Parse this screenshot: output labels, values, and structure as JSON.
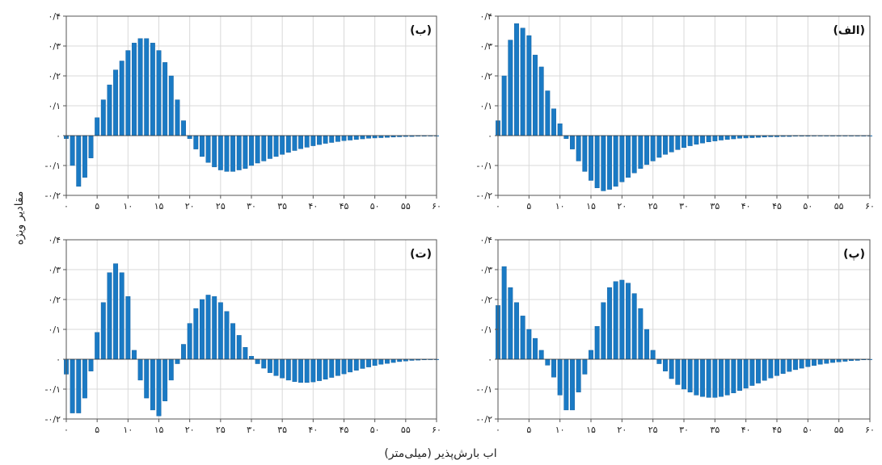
{
  "figure": {
    "xlabel": "اب بارش‌پذیر (میلی‌متر)",
    "ylabel": "مقادیر ویژه"
  },
  "colors": {
    "bar": "#1a7ac4",
    "bar_edge": "#0d5a99",
    "grid": "#d9d9d9",
    "axis": "#555555"
  },
  "chart_data": [
    {
      "type": "bar",
      "panel_label": "(الف)",
      "x": [
        0,
        1,
        2,
        3,
        4,
        5,
        6,
        7,
        8,
        9,
        10,
        11,
        12,
        13,
        14,
        15,
        16,
        17,
        18,
        19,
        20,
        21,
        22,
        23,
        24,
        25,
        26,
        27,
        28,
        29,
        30,
        31,
        32,
        33,
        34,
        35,
        36,
        37,
        38,
        39,
        40,
        41,
        42,
        43,
        44,
        45,
        46,
        47,
        48,
        49,
        50,
        51,
        52,
        53,
        54,
        55,
        56,
        57,
        58,
        59,
        60
      ],
      "values": [
        0.05,
        0.2,
        0.32,
        0.375,
        0.36,
        0.335,
        0.27,
        0.23,
        0.15,
        0.09,
        0.04,
        -0.01,
        -0.045,
        -0.085,
        -0.12,
        -0.15,
        -0.175,
        -0.185,
        -0.18,
        -0.17,
        -0.155,
        -0.14,
        -0.125,
        -0.11,
        -0.097,
        -0.085,
        -0.073,
        -0.063,
        -0.055,
        -0.047,
        -0.04,
        -0.034,
        -0.029,
        -0.025,
        -0.021,
        -0.018,
        -0.015,
        -0.013,
        -0.011,
        -0.009,
        -0.008,
        -0.007,
        -0.006,
        -0.005,
        -0.004,
        -0.004,
        -0.003,
        -0.003,
        -0.002,
        -0.002,
        -0.002,
        -0.001,
        -0.001,
        -0.001,
        -0.001,
        -0.001,
        -0.001,
        -0.001,
        -0.001,
        0,
        0
      ],
      "ylim": [
        -0.2,
        0.4
      ],
      "yticks": [
        -0.2,
        -0.1,
        0,
        0.1,
        0.2,
        0.3,
        0.4
      ],
      "ytick_labels": [
        "-۰/۲",
        "-۰/۱",
        "۰",
        "۰/۱",
        "۰/۲",
        "۰/۳",
        "۰/۴"
      ],
      "xticks": [
        0,
        5,
        10,
        15,
        20,
        25,
        30,
        35,
        40,
        45,
        50,
        55,
        60
      ],
      "xtick_labels": [
        "۰",
        "۵",
        "۱۰",
        "۱۵",
        "۲۰",
        "۲۵",
        "۳۰",
        "۳۵",
        "۴۰",
        "۴۵",
        "۵۰",
        "۵۵",
        "۶۰"
      ],
      "grid": true
    },
    {
      "type": "bar",
      "panel_label": "(ب)",
      "x": [
        0,
        1,
        2,
        3,
        4,
        5,
        6,
        7,
        8,
        9,
        10,
        11,
        12,
        13,
        14,
        15,
        16,
        17,
        18,
        19,
        20,
        21,
        22,
        23,
        24,
        25,
        26,
        27,
        28,
        29,
        30,
        31,
        32,
        33,
        34,
        35,
        36,
        37,
        38,
        39,
        40,
        41,
        42,
        43,
        44,
        45,
        46,
        47,
        48,
        49,
        50,
        51,
        52,
        53,
        54,
        55,
        56,
        57,
        58,
        59,
        60
      ],
      "values": [
        -0.01,
        -0.1,
        -0.17,
        -0.14,
        -0.075,
        0.06,
        0.12,
        0.17,
        0.22,
        0.25,
        0.285,
        0.31,
        0.325,
        0.325,
        0.31,
        0.285,
        0.245,
        0.2,
        0.12,
        0.05,
        -0.01,
        -0.045,
        -0.07,
        -0.09,
        -0.105,
        -0.115,
        -0.12,
        -0.12,
        -0.115,
        -0.11,
        -0.1,
        -0.092,
        -0.085,
        -0.077,
        -0.07,
        -0.063,
        -0.056,
        -0.05,
        -0.044,
        -0.039,
        -0.034,
        -0.03,
        -0.026,
        -0.023,
        -0.02,
        -0.017,
        -0.015,
        -0.013,
        -0.011,
        -0.009,
        -0.008,
        -0.007,
        -0.006,
        -0.005,
        -0.004,
        -0.003,
        -0.003,
        -0.002,
        -0.002,
        -0.001,
        0
      ],
      "ylim": [
        -0.2,
        0.4
      ],
      "yticks": [
        -0.2,
        -0.1,
        0,
        0.1,
        0.2,
        0.3,
        0.4
      ],
      "ytick_labels": [
        "-۰/۲",
        "-۰/۱",
        "۰",
        "۰/۱",
        "۰/۲",
        "۰/۳",
        "۰/۴"
      ],
      "xticks": [
        0,
        5,
        10,
        15,
        20,
        25,
        30,
        35,
        40,
        45,
        50,
        55,
        60
      ],
      "xtick_labels": [
        "۰",
        "۵",
        "۱۰",
        "۱۵",
        "۲۰",
        "۲۵",
        "۳۰",
        "۳۵",
        "۴۰",
        "۴۵",
        "۵۰",
        "۵۵",
        "۶۰"
      ],
      "grid": true
    },
    {
      "type": "bar",
      "panel_label": "(پ)",
      "x": [
        0,
        1,
        2,
        3,
        4,
        5,
        6,
        7,
        8,
        9,
        10,
        11,
        12,
        13,
        14,
        15,
        16,
        17,
        18,
        19,
        20,
        21,
        22,
        23,
        24,
        25,
        26,
        27,
        28,
        29,
        30,
        31,
        32,
        33,
        34,
        35,
        36,
        37,
        38,
        39,
        40,
        41,
        42,
        43,
        44,
        45,
        46,
        47,
        48,
        49,
        50,
        51,
        52,
        53,
        54,
        55,
        56,
        57,
        58,
        59,
        60
      ],
      "values": [
        0.18,
        0.31,
        0.24,
        0.19,
        0.145,
        0.1,
        0.07,
        0.03,
        -0.02,
        -0.06,
        -0.12,
        -0.17,
        -0.17,
        -0.11,
        -0.05,
        0.03,
        0.11,
        0.19,
        0.24,
        0.26,
        0.265,
        0.255,
        0.22,
        0.17,
        0.1,
        0.03,
        -0.015,
        -0.04,
        -0.065,
        -0.085,
        -0.1,
        -0.11,
        -0.12,
        -0.125,
        -0.128,
        -0.128,
        -0.125,
        -0.12,
        -0.113,
        -0.105,
        -0.097,
        -0.088,
        -0.08,
        -0.071,
        -0.063,
        -0.055,
        -0.048,
        -0.041,
        -0.035,
        -0.03,
        -0.025,
        -0.021,
        -0.017,
        -0.014,
        -0.011,
        -0.009,
        -0.007,
        -0.005,
        -0.004,
        -0.002,
        0
      ],
      "ylim": [
        -0.2,
        0.4
      ],
      "yticks": [
        -0.2,
        -0.1,
        0,
        0.1,
        0.2,
        0.3,
        0.4
      ],
      "ytick_labels": [
        "-۰/۲",
        "-۰/۱",
        "۰",
        "۰/۱",
        "۰/۲",
        "۰/۳",
        "۰/۴"
      ],
      "xticks": [
        0,
        5,
        10,
        15,
        20,
        25,
        30,
        35,
        40,
        45,
        50,
        55,
        60
      ],
      "xtick_labels": [
        "۰",
        "۵",
        "۱۰",
        "۱۵",
        "۲۰",
        "۲۵",
        "۳۰",
        "۳۵",
        "۴۰",
        "۴۵",
        "۵۰",
        "۵۵",
        "۶۰"
      ],
      "grid": true
    },
    {
      "type": "bar",
      "panel_label": "(ت)",
      "x": [
        0,
        1,
        2,
        3,
        4,
        5,
        6,
        7,
        8,
        9,
        10,
        11,
        12,
        13,
        14,
        15,
        16,
        17,
        18,
        19,
        20,
        21,
        22,
        23,
        24,
        25,
        26,
        27,
        28,
        29,
        30,
        31,
        32,
        33,
        34,
        35,
        36,
        37,
        38,
        39,
        40,
        41,
        42,
        43,
        44,
        45,
        46,
        47,
        48,
        49,
        50,
        51,
        52,
        53,
        54,
        55,
        56,
        57,
        58,
        59,
        60
      ],
      "values": [
        -0.05,
        -0.18,
        -0.18,
        -0.13,
        -0.04,
        0.09,
        0.19,
        0.29,
        0.32,
        0.29,
        0.21,
        0.03,
        -0.07,
        -0.13,
        -0.17,
        -0.19,
        -0.14,
        -0.07,
        -0.015,
        0.05,
        0.12,
        0.17,
        0.2,
        0.215,
        0.21,
        0.19,
        0.16,
        0.12,
        0.08,
        0.04,
        0.01,
        -0.015,
        -0.03,
        -0.045,
        -0.055,
        -0.063,
        -0.07,
        -0.075,
        -0.078,
        -0.078,
        -0.076,
        -0.072,
        -0.067,
        -0.061,
        -0.055,
        -0.049,
        -0.043,
        -0.037,
        -0.031,
        -0.026,
        -0.021,
        -0.017,
        -0.014,
        -0.011,
        -0.008,
        -0.006,
        -0.004,
        -0.003,
        -0.002,
        -0.001,
        0
      ],
      "ylim": [
        -0.2,
        0.4
      ],
      "yticks": [
        -0.2,
        -0.1,
        0,
        0.1,
        0.2,
        0.3,
        0.4
      ],
      "ytick_labels": [
        "-۰/۲",
        "-۰/۱",
        "۰",
        "۰/۱",
        "۰/۲",
        "۰/۳",
        "۰/۴"
      ],
      "xticks": [
        0,
        5,
        10,
        15,
        20,
        25,
        30,
        35,
        40,
        45,
        50,
        55,
        60
      ],
      "xtick_labels": [
        "۰",
        "۵",
        "۱۰",
        "۱۵",
        "۲۰",
        "۲۵",
        "۳۰",
        "۳۵",
        "۴۰",
        "۴۵",
        "۵۰",
        "۵۵",
        "۶۰"
      ],
      "grid": true
    }
  ]
}
